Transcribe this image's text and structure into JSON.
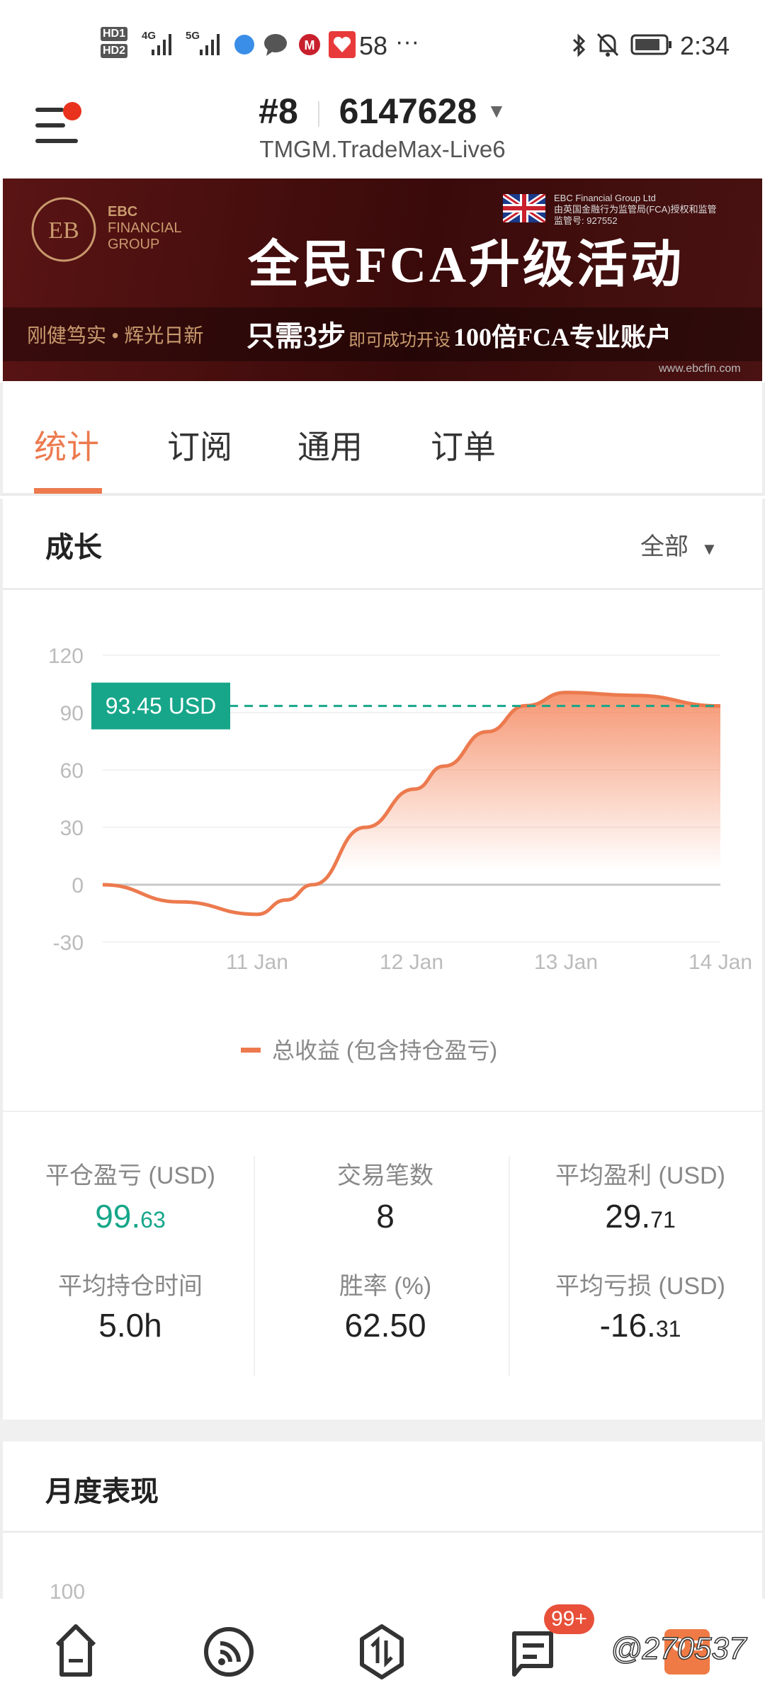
{
  "status_bar": {
    "time": "2:34",
    "notification_count": "58",
    "more": "···",
    "network": [
      "4G",
      "5G"
    ],
    "sim": [
      "HD1",
      "HD2"
    ]
  },
  "header": {
    "account_prefix": "#8",
    "account_number": "6147628",
    "server": "TMGM.TradeMax-Live6",
    "menu_has_notification": true
  },
  "banner": {
    "logo_line1": "EBC",
    "logo_line2": "FINANCIAL",
    "logo_line3": "GROUP",
    "company": "EBC Financial Group Ltd",
    "regulator": "由英国金融行为监管局(FCA)授权和监管",
    "license": "监管号: 927552",
    "headline": "全民FCA升级活动",
    "slogan": "刚健笃实 • 辉光日新",
    "sub_a": "只需3步",
    "sub_b": "即可成功开设",
    "sub_c": "100倍FCA专业账户",
    "url": "www.ebcfin.com"
  },
  "tabs": [
    {
      "label": "统计",
      "active": true
    },
    {
      "label": "订阅"
    },
    {
      "label": "通用"
    },
    {
      "label": "订单"
    }
  ],
  "growth": {
    "title": "成长",
    "filter": "全部"
  },
  "chart_data": {
    "type": "area",
    "yticks": [
      120,
      90,
      60,
      30,
      0,
      -30
    ],
    "ylim": [
      -30,
      120
    ],
    "xticks": [
      "11 Jan",
      "12 Jan",
      "13 Jan",
      "14 Jan"
    ],
    "xlim": [
      "10 Jan 00:00",
      "14 Jan 00:00"
    ],
    "grid": true,
    "current_value_label": "93.45 USD",
    "current_value": 93.45,
    "legend_position": "bottom",
    "series": [
      {
        "name": "总收益 (包含持仓盈亏)",
        "color": "#ec7a4e",
        "points": [
          [
            "10 Jan 00:00",
            0
          ],
          [
            "10 Jan 12:00",
            -9
          ],
          [
            "11 Jan 00:00",
            -15.5
          ],
          [
            "11 Jan 04:30",
            -8
          ],
          [
            "11 Jan 08:38",
            0
          ],
          [
            "11 Jan 16:48",
            30
          ],
          [
            "12 Jan 00:29",
            50
          ],
          [
            "12 Jan 05:02",
            62
          ],
          [
            "12 Jan 11:46",
            80
          ],
          [
            "12 Jan 17:46",
            93.6
          ],
          [
            "13 Jan 00:00",
            100.5
          ],
          [
            "13 Jan 10:34",
            99
          ],
          [
            "14 Jan 00:00",
            93.45
          ]
        ]
      }
    ]
  },
  "stats": [
    {
      "label": "平仓盈亏 (USD)",
      "int": "99.",
      "dec": "63",
      "color": "#17a68a"
    },
    {
      "label": "交易笔数",
      "int": "8",
      "dec": ""
    },
    {
      "label": "平均盈利 (USD)",
      "int": "29.",
      "dec": "71"
    },
    {
      "label": "平均持仓时间",
      "int": "5.0h",
      "dec": ""
    },
    {
      "label": "胜率 (%)",
      "int": "62.50",
      "dec": ""
    },
    {
      "label": "平均亏损 (USD)",
      "int": "-16.",
      "dec": "31"
    }
  ],
  "monthly": {
    "title": "月度表现",
    "first_tick": "100"
  },
  "nav": {
    "items": [
      {
        "icon": "home-icon"
      },
      {
        "icon": "feed-icon"
      },
      {
        "icon": "trade-icon"
      },
      {
        "icon": "message-icon",
        "badge": "99+"
      },
      {
        "icon": "profile-icon"
      }
    ]
  },
  "watermark": "@270537",
  "colors": {
    "accent": "#ec7a4e",
    "positive": "#17a68a",
    "badge": "#e8503a"
  }
}
